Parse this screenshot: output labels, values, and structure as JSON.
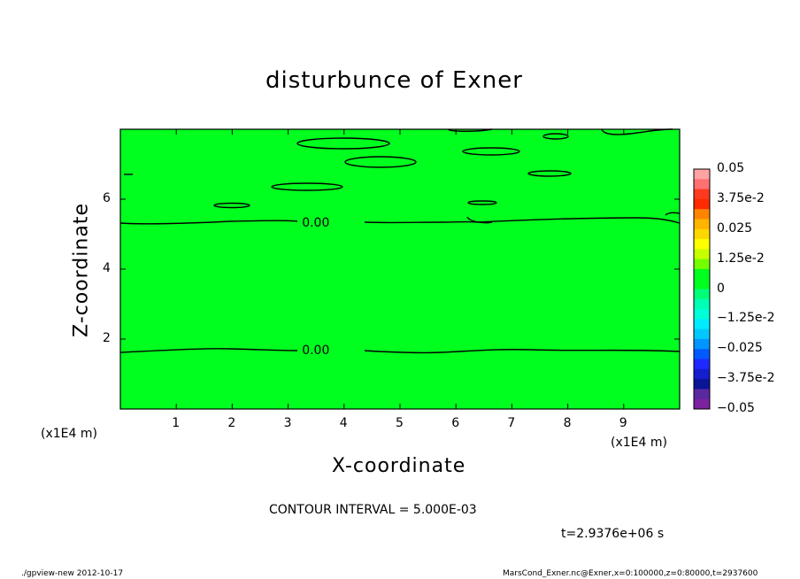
{
  "chart_data": {
    "type": "heatmap",
    "title": "disturbunce of Exner",
    "xlabel": "X-coordinate",
    "ylabel": "Z-coordinate",
    "x_unit": "(x1E4 m)",
    "y_unit": "(x1E4 m)",
    "xlim": [
      0,
      10
    ],
    "ylim": [
      0,
      8
    ],
    "xticks": [
      "1",
      "2",
      "3",
      "4",
      "5",
      "6",
      "7",
      "8",
      "9"
    ],
    "yticks": [
      "2",
      "4",
      "6"
    ],
    "field_color": "#00ff1e",
    "contour_labels": [
      {
        "text": "0.00",
        "x": 3.5,
        "z": 5.3
      },
      {
        "text": "0.00",
        "x": 3.5,
        "z": 1.65
      }
    ],
    "colorbar": {
      "labels": [
        "0.05",
        "3.75e-2",
        "0.025",
        "1.25e-2",
        "0",
        "−1.25e-2",
        "−0.025",
        "−3.75e-2",
        "−0.05"
      ],
      "colors": [
        "#ffa3a3",
        "#ff7070",
        "#ff3a1e",
        "#ff2a00",
        "#ff8400",
        "#ffb400",
        "#ffd700",
        "#ffff00",
        "#c8ff00",
        "#73ff00",
        "#00ff1e",
        "#00ff1e",
        "#00ff78",
        "#00ffb4",
        "#00ffd7",
        "#00ebff",
        "#00c8ff",
        "#0096ff",
        "#005aff",
        "#1e28ff",
        "#141ecd",
        "#0a1496",
        "#5a28a0",
        "#7a22a0"
      ]
    },
    "contour_interval": "CONTOUR INTERVAL = 5.000E-03",
    "time_label": "t=2.9376e+06 s"
  },
  "footer": {
    "left": "./gpview-new   2012-10-17",
    "right": "MarsCond_Exner.nc@Exner,x=0:100000,z=0:80000,t=2937600"
  }
}
